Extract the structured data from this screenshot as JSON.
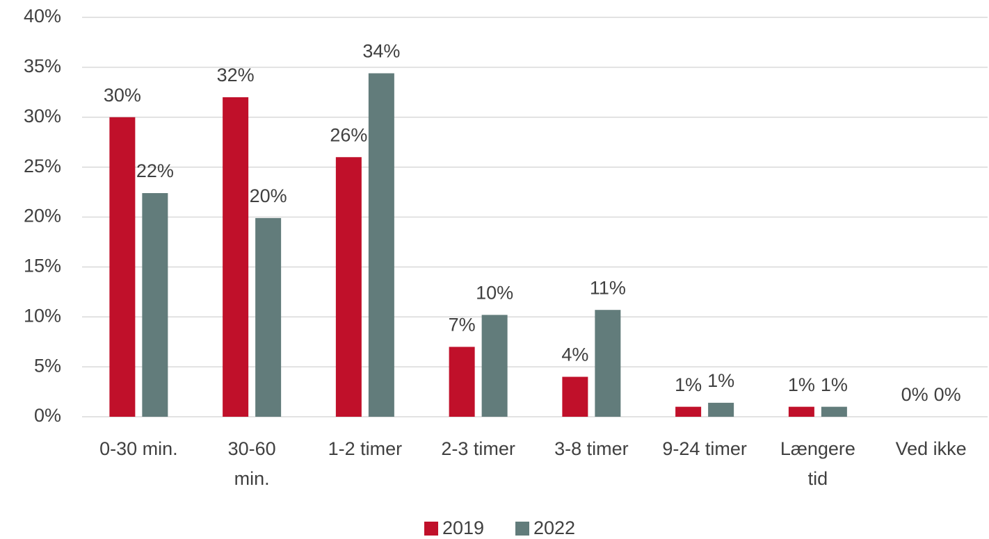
{
  "chart_data": {
    "type": "bar",
    "categories": [
      "0-30 min.",
      [
        "30-60",
        "min."
      ],
      "1-2 timer",
      "2-3 timer",
      "3-8 timer",
      "9-24 timer",
      [
        "Længere",
        "tid"
      ],
      "Ved ikke"
    ],
    "series": [
      {
        "name": "2019",
        "color": "#c0102a",
        "values": [
          30,
          32,
          26,
          7,
          4,
          1,
          1,
          0
        ],
        "value_labels": [
          "30%",
          "32%",
          "26%",
          "7%",
          "4%",
          "1%",
          "1%",
          "0%"
        ]
      },
      {
        "name": "2022",
        "color": "#627c7b",
        "values": [
          22.4,
          19.9,
          34.4,
          10.2,
          10.7,
          1.4,
          1,
          0
        ],
        "value_labels": [
          "22%",
          "20%",
          "34%",
          "10%",
          "11%",
          "1%",
          "1%",
          "0%"
        ]
      }
    ],
    "ylim": [
      0,
      40
    ],
    "yticks": [
      {
        "value": 0,
        "label": "0%"
      },
      {
        "value": 5,
        "label": "5%"
      },
      {
        "value": 10,
        "label": "10%"
      },
      {
        "value": 15,
        "label": "15%"
      },
      {
        "value": 20,
        "label": "20%"
      },
      {
        "value": 25,
        "label": "25%"
      },
      {
        "value": 30,
        "label": "30%"
      },
      {
        "value": 35,
        "label": "35%"
      },
      {
        "value": 40,
        "label": "40%"
      }
    ],
    "grid": true,
    "legend": "bottom"
  }
}
